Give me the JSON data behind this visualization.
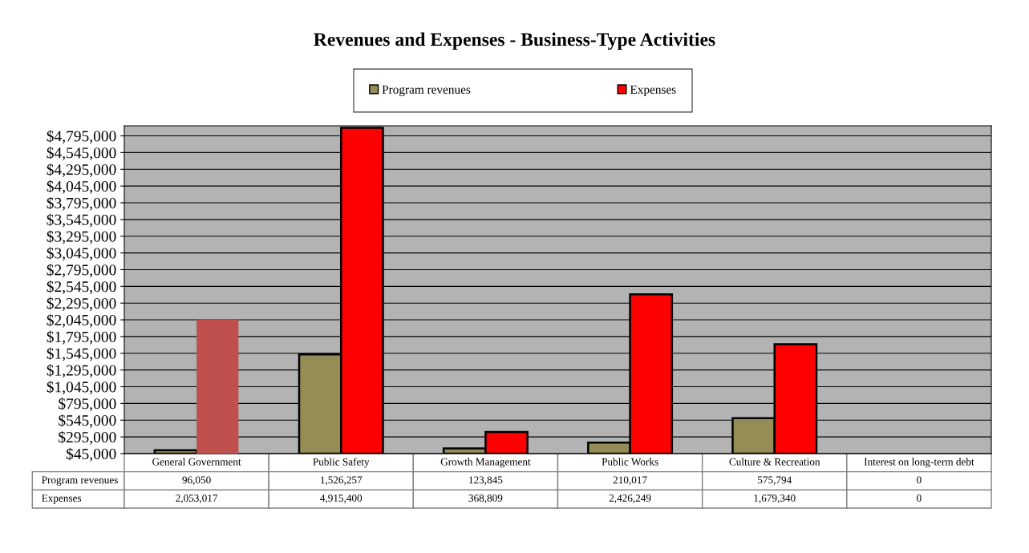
{
  "chart_data": {
    "type": "bar",
    "title": "Revenues and Expenses - Business-Type Activities",
    "categories": [
      "General Government",
      "Public Safety",
      "Growth Management",
      "Public Works",
      "Culture & Recreation",
      "Interest on long-term debt"
    ],
    "series": [
      {
        "name": "Program revenues",
        "color": "#968c55",
        "values": [
          96050,
          1526257,
          123845,
          210017,
          575794,
          null
        ],
        "value_labels": [
          "96,050",
          "1,526,257",
          "123,845",
          "210,017",
          "575,794",
          "0"
        ]
      },
      {
        "name": "Expenses",
        "color": "#ff0000",
        "colors": [
          "#c0504d",
          "#ff0000",
          "#ff0000",
          "#ff0000",
          "#ff0000",
          "#ff0000"
        ],
        "values": [
          2053017,
          4915400,
          368809,
          2426249,
          1679340,
          null
        ],
        "value_labels": [
          "2,053,017",
          "4,915,400",
          "368,809",
          "2,426,249",
          "1,679,340",
          "0"
        ]
      }
    ],
    "ylim": [
      45000,
      4945000
    ],
    "yticks": [
      {
        "value": 45000,
        "label": "$45,000"
      },
      {
        "value": 295000,
        "label": "$295,000"
      },
      {
        "value": 545000,
        "label": "$545,000"
      },
      {
        "value": 795000,
        "label": "$795,000"
      },
      {
        "value": 1045000,
        "label": "$1,045,000"
      },
      {
        "value": 1295000,
        "label": "$1,295,000"
      },
      {
        "value": 1545000,
        "label": "$1,545,000"
      },
      {
        "value": 1795000,
        "label": "$1,795,000"
      },
      {
        "value": 2045000,
        "label": "$2,045,000"
      },
      {
        "value": 2295000,
        "label": "$2,295,000"
      },
      {
        "value": 2545000,
        "label": "$2,545,000"
      },
      {
        "value": 2795000,
        "label": "$2,795,000"
      },
      {
        "value": 3045000,
        "label": "$3,045,000"
      },
      {
        "value": 3295000,
        "label": "$3,295,000"
      },
      {
        "value": 3545000,
        "label": "$3,545,000"
      },
      {
        "value": 3795000,
        "label": "$3,795,000"
      },
      {
        "value": 4045000,
        "label": "$4,045,000"
      },
      {
        "value": 4295000,
        "label": "$4,295,000"
      },
      {
        "value": 4545000,
        "label": "$4,545,000"
      },
      {
        "value": 4795000,
        "label": "$4,795,000"
      }
    ],
    "grid": "y",
    "legend": "top"
  }
}
